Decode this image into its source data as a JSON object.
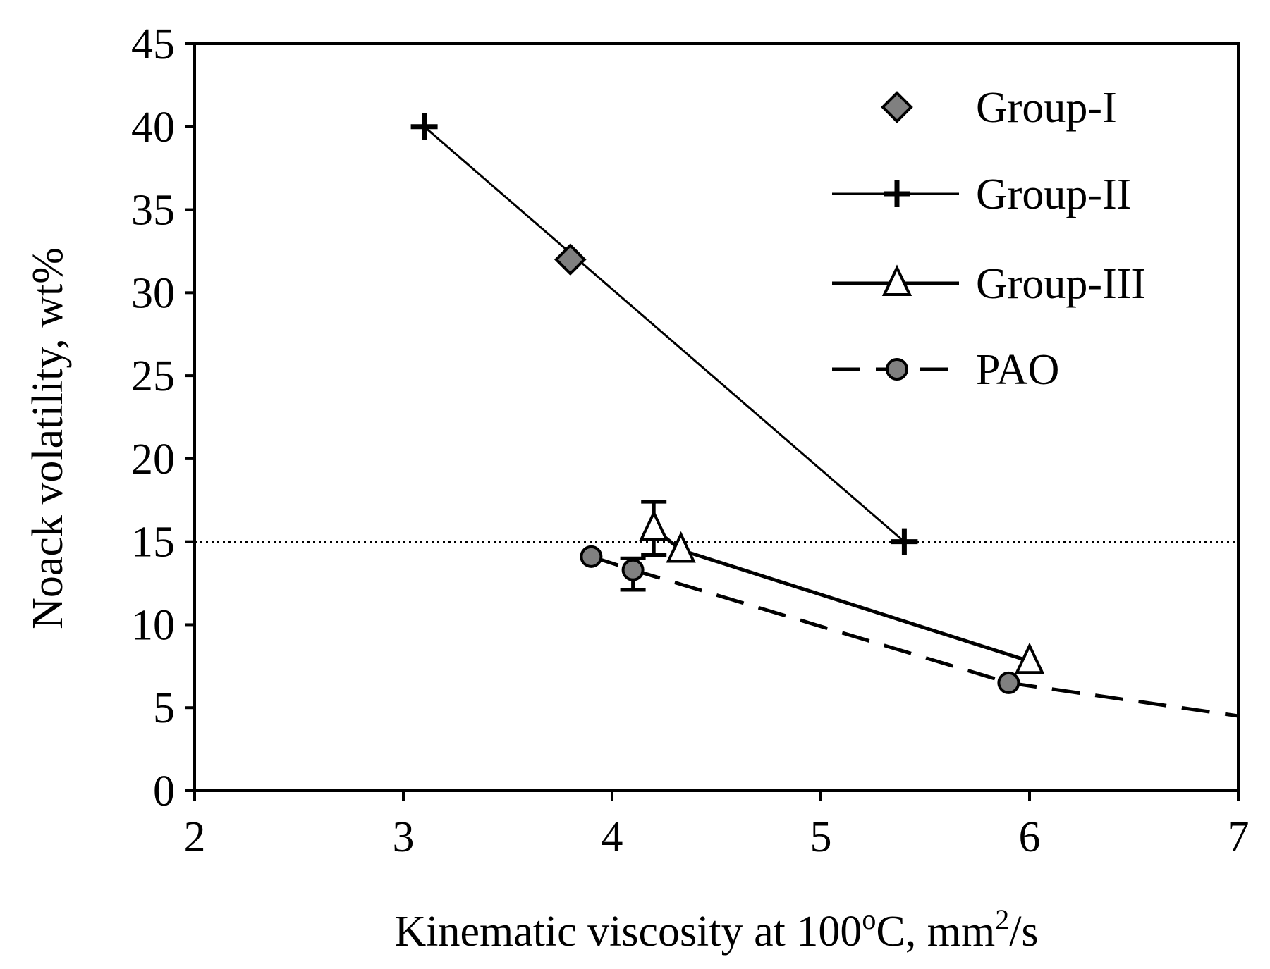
{
  "chart_data": {
    "type": "scatter",
    "xlabel": {
      "pre": "Kinematic viscosity at 100",
      "sup1": "o",
      "mid": "C, mm",
      "sup2": "2",
      "post": "/s"
    },
    "ylabel": "Noack volatility, wt%",
    "xlim": [
      2,
      7
    ],
    "ylim": [
      0,
      45
    ],
    "xticks": [
      "2",
      "3",
      "4",
      "5",
      "6",
      "7"
    ],
    "yticks": [
      "0",
      "5",
      "10",
      "15",
      "20",
      "25",
      "30",
      "35",
      "40",
      "45"
    ],
    "grid": false,
    "legend_position": "top-right",
    "reference_line": {
      "y": 15,
      "style": "dotted"
    },
    "series": [
      {
        "name": "Group-I",
        "marker": "diamond",
        "fill": "#808080",
        "line": "none",
        "points": [
          {
            "x": 3.8,
            "y": 32
          }
        ]
      },
      {
        "name": "Group-II",
        "marker": "plus",
        "fill": "#000000",
        "line": "solid-thin",
        "points": [
          {
            "x": 3.1,
            "y": 40
          },
          {
            "x": 5.4,
            "y": 15
          }
        ]
      },
      {
        "name": "Group-III",
        "marker": "triangle",
        "fill": "#ffffff",
        "line": "solid-thick",
        "points": [
          {
            "x": 4.2,
            "y": 15.8,
            "err_low": 14.2,
            "err_high": 17.4
          },
          {
            "x": 4.33,
            "y": 14.5
          },
          {
            "x": 6.0,
            "y": 7.8
          }
        ]
      },
      {
        "name": "PAO",
        "marker": "circle",
        "fill": "#808080",
        "line": "dashed",
        "points": [
          {
            "x": 3.9,
            "y": 14.1
          },
          {
            "x": 4.1,
            "y": 13.3,
            "err_low": 12.1,
            "err_high": 14.0
          },
          {
            "x": 5.9,
            "y": 6.5
          }
        ],
        "extension": [
          {
            "x": 5.9,
            "y": 6.5
          },
          {
            "x": 7.0,
            "y": 4.5
          }
        ]
      }
    ]
  }
}
